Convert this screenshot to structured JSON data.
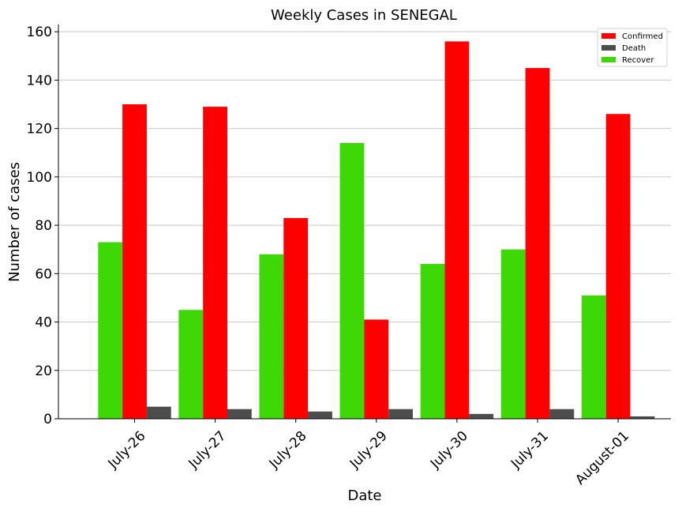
{
  "chart_data": {
    "type": "bar",
    "title": "Weekly Cases in SENEGAL",
    "xlabel": "Date",
    "ylabel": "Number of cases",
    "categories": [
      "July-26",
      "July-27",
      "July-28",
      "July-29",
      "July-30",
      "July-31",
      "August-01"
    ],
    "series": [
      {
        "name": "Recover",
        "color": "#3dd806",
        "values": [
          73,
          45,
          68,
          114,
          64,
          70,
          51
        ]
      },
      {
        "name": "Confirmed",
        "color": "#ff0000",
        "values": [
          130,
          129,
          83,
          41,
          156,
          145,
          126
        ]
      },
      {
        "name": "Death",
        "color": "#4d4d4d",
        "values": [
          5,
          4,
          3,
          4,
          2,
          4,
          1
        ]
      }
    ],
    "legend_order": [
      "Confirmed",
      "Death",
      "Recover"
    ],
    "yticks": [
      0,
      20,
      40,
      60,
      80,
      100,
      120,
      140,
      160
    ],
    "ylim": [
      0,
      163
    ],
    "grid": "horizontal",
    "legend_position": "top-right"
  }
}
